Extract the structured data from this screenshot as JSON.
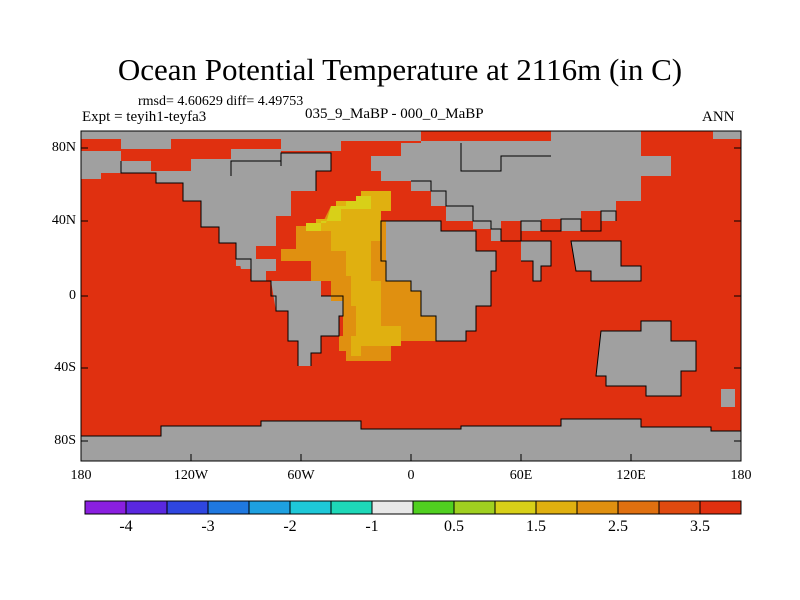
{
  "title": "Ocean Potential Temperature at 2116m (in C)",
  "stats": "rmsd= 4.60629 diff= 4.49753",
  "experiment": "Expt = teyih1-teyfa3",
  "period": "035_9_MaBP - 000_0_MaBP",
  "season": "ANN",
  "lat_ticks": [
    "80N",
    "40N",
    "0",
    "40S",
    "80S"
  ],
  "lon_ticks": [
    "180",
    "120W",
    "60W",
    "0",
    "60E",
    "120E",
    "180"
  ],
  "colorbar": {
    "colors": [
      "#8a1fe0",
      "#5a28e0",
      "#2f46e0",
      "#1f78e0",
      "#1ea0e0",
      "#1ec8d8",
      "#1ed8b8",
      "#e8e8e8",
      "#50d020",
      "#a0d020",
      "#d8d018",
      "#e0b010",
      "#e09010",
      "#e07010",
      "#e04a10",
      "#e03010"
    ],
    "labels": [
      "-4",
      "-3",
      "-2",
      "-1",
      "0.5",
      "1.5",
      "2.5",
      "3.5"
    ]
  },
  "colors": {
    "land": "#a0a0a0",
    "ocean_warm": "#e03010",
    "atlantic_mid": "#e09010",
    "atlantic_light": "#e0b010",
    "atlantic_yellow": "#d8d018"
  }
}
